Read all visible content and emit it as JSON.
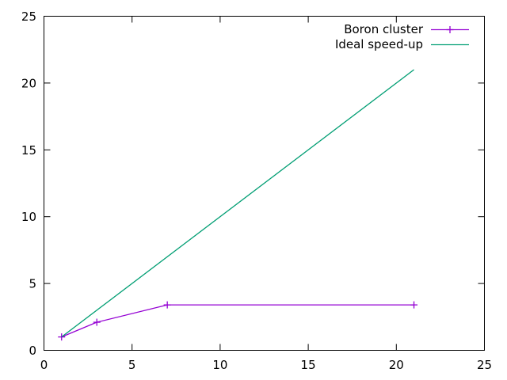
{
  "chart_data": {
    "type": "line",
    "title": "",
    "xlabel": "",
    "ylabel": "",
    "xlim": [
      0,
      25
    ],
    "ylim": [
      0,
      25
    ],
    "x_ticks": [
      0,
      5,
      10,
      15,
      20,
      25
    ],
    "y_ticks": [
      0,
      5,
      10,
      15,
      20,
      25
    ],
    "grid": false,
    "legend_position": "top-right-inside",
    "series": [
      {
        "name": "Boron cluster",
        "color": "#9400d3",
        "marker": "plus",
        "points": [
          [
            1,
            1
          ],
          [
            3,
            2.1
          ],
          [
            7,
            3.4
          ],
          [
            21,
            3.4
          ]
        ]
      },
      {
        "name": "Ideal speed-up",
        "color": "#009e73",
        "marker": "none",
        "points": [
          [
            1,
            1
          ],
          [
            21,
            21
          ]
        ]
      }
    ],
    "colors": {
      "background": "#ffffff",
      "border": "#000000",
      "text": "#000000"
    }
  }
}
